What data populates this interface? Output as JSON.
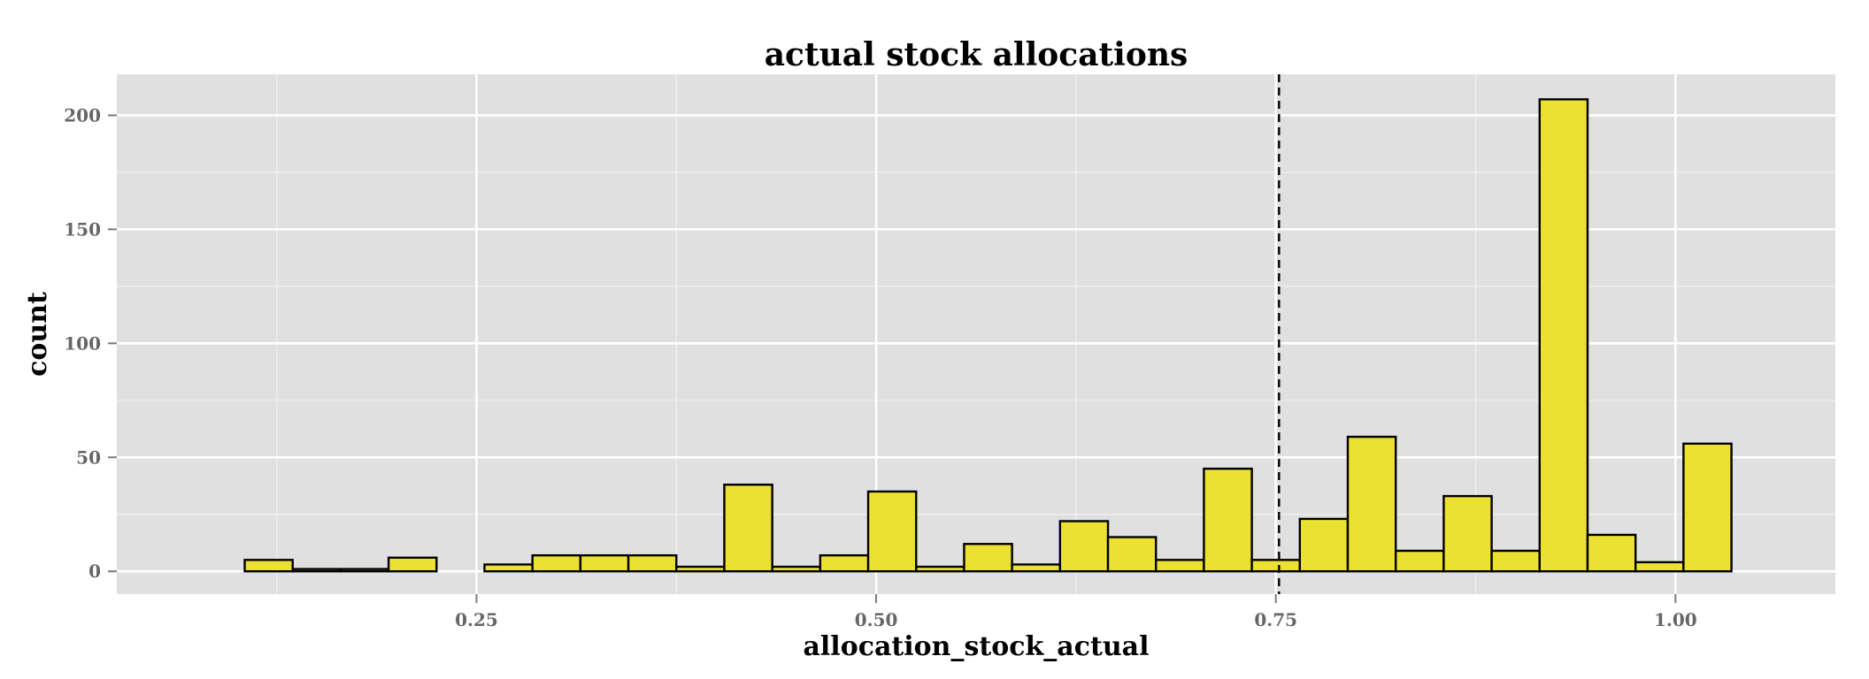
{
  "chart_data": {
    "type": "bar",
    "title": "actual stock allocations",
    "xlabel": "allocation_stock_actual",
    "ylabel": "count",
    "xlim": [
      0.025,
      1.1
    ],
    "ylim": [
      -10,
      218
    ],
    "x_ticks": [
      0.25,
      0.5,
      0.75,
      1.0
    ],
    "x_tick_labels": [
      "0.25",
      "0.50",
      "0.75",
      "1.00"
    ],
    "y_ticks": [
      0,
      50,
      100,
      150,
      200
    ],
    "y_tick_labels": [
      "0",
      "50",
      "100",
      "150",
      "200"
    ],
    "grid": true,
    "bin_width": 0.03,
    "bins_start": [
      0.075,
      0.105,
      0.135,
      0.165,
      0.195,
      0.225,
      0.255,
      0.285,
      0.315,
      0.345,
      0.375,
      0.405,
      0.435,
      0.465,
      0.495,
      0.525,
      0.555,
      0.585,
      0.615,
      0.645,
      0.675,
      0.705,
      0.735,
      0.765,
      0.795,
      0.825,
      0.855,
      0.885,
      0.915,
      0.945,
      0.975,
      1.005
    ],
    "counts": [
      0,
      5,
      1,
      1,
      6,
      0,
      3,
      7,
      7,
      7,
      2,
      38,
      2,
      7,
      35,
      2,
      12,
      3,
      22,
      15,
      5,
      45,
      5,
      23,
      59,
      9,
      33,
      9,
      207,
      16,
      4,
      56
    ],
    "vline": {
      "x": 0.752,
      "style": "dashed"
    },
    "fill_color": "#ece133",
    "edge_color": "#000000",
    "panel_color": "#e0e0e0",
    "grid_color": "#ffffff"
  }
}
